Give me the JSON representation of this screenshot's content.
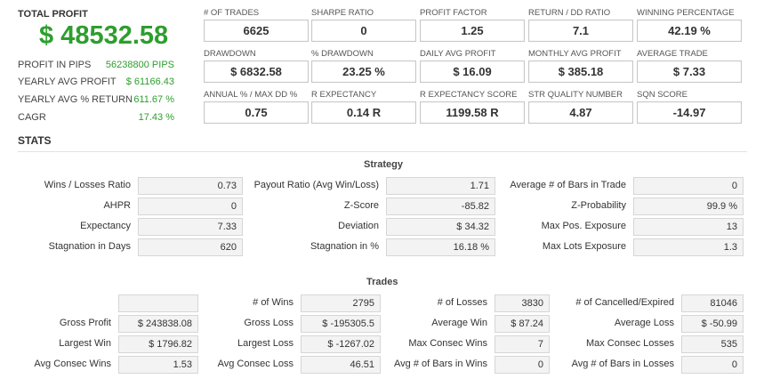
{
  "summary": {
    "total_profit_label": "TOTAL PROFIT",
    "total_profit_value": "$ 48532.58",
    "rows": [
      {
        "label": "PROFIT IN PIPS",
        "value": "56238800 PIPS"
      },
      {
        "label": "YEARLY AVG PROFIT",
        "value": "$ 61166.43"
      },
      {
        "label": "YEARLY AVG % RETURN",
        "value": "611.67 %"
      },
      {
        "label": "CAGR",
        "value": "17.43 %"
      }
    ]
  },
  "metrics": [
    {
      "label": "# OF TRADES",
      "value": "6625"
    },
    {
      "label": "SHARPE RATIO",
      "value": "0"
    },
    {
      "label": "PROFIT FACTOR",
      "value": "1.25"
    },
    {
      "label": "RETURN / DD RATIO",
      "value": "7.1"
    },
    {
      "label": "WINNING PERCENTAGE",
      "value": "42.19 %"
    },
    {
      "label": "DRAWDOWN",
      "value": "$ 6832.58"
    },
    {
      "label": "% DRAWDOWN",
      "value": "23.25 %"
    },
    {
      "label": "DAILY AVG PROFIT",
      "value": "$ 16.09"
    },
    {
      "label": "MONTHLY AVG PROFIT",
      "value": "$ 385.18"
    },
    {
      "label": "AVERAGE TRADE",
      "value": "$ 7.33"
    },
    {
      "label": "ANNUAL % / MAX DD %",
      "value": "0.75"
    },
    {
      "label": "R EXPECTANCY",
      "value": "0.14 R"
    },
    {
      "label": "R EXPECTANCY SCORE",
      "value": "1199.58 R"
    },
    {
      "label": "STR QUALITY NUMBER",
      "value": "4.87"
    },
    {
      "label": "SQN SCORE",
      "value": "-14.97"
    }
  ],
  "stats_title": "STATS",
  "strategy": {
    "title": "Strategy",
    "rows": [
      [
        {
          "label": "Wins / Losses Ratio",
          "value": "0.73"
        },
        {
          "label": "Payout Ratio (Avg Win/Loss)",
          "value": "1.71"
        },
        {
          "label": "Average # of Bars in Trade",
          "value": "0"
        }
      ],
      [
        {
          "label": "AHPR",
          "value": "0"
        },
        {
          "label": "Z-Score",
          "value": "-85.82"
        },
        {
          "label": "Z-Probability",
          "value": "99.9 %"
        }
      ],
      [
        {
          "label": "Expectancy",
          "value": "7.33"
        },
        {
          "label": "Deviation",
          "value": "$ 34.32"
        },
        {
          "label": "Max Pos. Exposure",
          "value": "13"
        }
      ],
      [
        {
          "label": "Stagnation in Days",
          "value": "620"
        },
        {
          "label": "Stagnation in %",
          "value": "16.18 %"
        },
        {
          "label": "Max Lots Exposure",
          "value": "1.3"
        }
      ]
    ]
  },
  "trades": {
    "title": "Trades",
    "rows": [
      [
        {
          "label": "",
          "value": ""
        },
        {
          "label": "# of Wins",
          "value": "2795"
        },
        {
          "label": "# of Losses",
          "value": "3830"
        },
        {
          "label": "# of Cancelled/Expired",
          "value": "81046"
        }
      ],
      [
        {
          "label": "Gross Profit",
          "value": "$ 243838.08"
        },
        {
          "label": "Gross Loss",
          "value": "$ -195305.5"
        },
        {
          "label": "Average Win",
          "value": "$ 87.24"
        },
        {
          "label": "Average Loss",
          "value": "$ -50.99"
        }
      ],
      [
        {
          "label": "Largest Win",
          "value": "$ 1796.82"
        },
        {
          "label": "Largest Loss",
          "value": "$ -1267.02"
        },
        {
          "label": "Max Consec Wins",
          "value": "7"
        },
        {
          "label": "Max Consec Losses",
          "value": "535"
        }
      ],
      [
        {
          "label": "Avg Consec Wins",
          "value": "1.53"
        },
        {
          "label": "Avg Consec Loss",
          "value": "46.51"
        },
        {
          "label": "Avg # of Bars in Wins",
          "value": "0"
        },
        {
          "label": "Avg # of Bars in Losses",
          "value": "0"
        }
      ]
    ]
  }
}
